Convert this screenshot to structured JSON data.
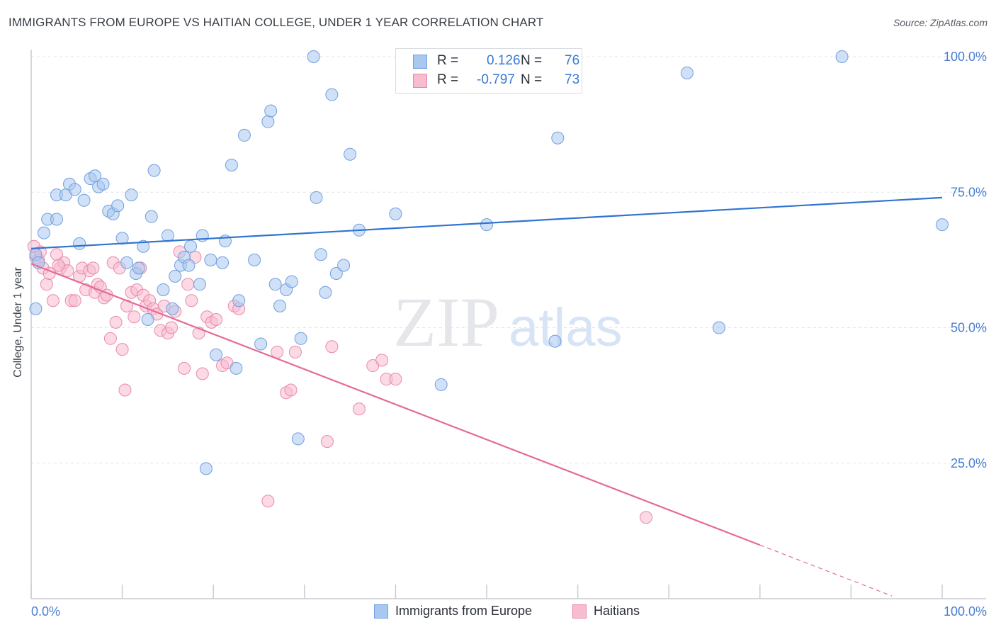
{
  "header": {
    "title": "IMMIGRANTS FROM EUROPE VS HAITIAN COLLEGE, UNDER 1 YEAR CORRELATION CHART",
    "source": "Source: ZipAtlas.com"
  },
  "watermark": {
    "zip": "ZIP",
    "atlas": "atlas"
  },
  "legend": {
    "rows": [
      {
        "r_label": "R =",
        "r_value": "0.126",
        "n_label": "N =",
        "n_value": "76",
        "color": "#a9c8f0",
        "border": "#6f9fe0"
      },
      {
        "r_label": "R =",
        "r_value": "-0.797",
        "n_label": "N =",
        "n_value": "73",
        "color": "#f7bccf",
        "border": "#e98aa9"
      }
    ]
  },
  "bottom_legend": [
    {
      "label": "Immigrants from Europe",
      "color": "#a9c8f0",
      "border": "#6f9fe0"
    },
    {
      "label": "Haitians",
      "color": "#f7bccf",
      "border": "#e98aa9"
    }
  ],
  "chart_data": {
    "type": "scatter",
    "title": "IMMIGRANTS FROM EUROPE VS HAITIAN COLLEGE, UNDER 1 YEAR CORRELATION CHART",
    "xlabel": "",
    "ylabel": "College, Under 1 year",
    "xlim": [
      0,
      100
    ],
    "ylim": [
      0,
      103
    ],
    "x_tick_labels": [
      "0.0%",
      "100.0%"
    ],
    "y_tick_labels": [
      "25.0%",
      "50.0%",
      "75.0%",
      "100.0%"
    ],
    "y_ticks": [
      25,
      50,
      75,
      100
    ],
    "grid": true,
    "colors": {
      "blue_point": "#a9c8f0",
      "blue_line": "#2f74d0",
      "pink_point": "#f7bccf",
      "pink_line": "#e46c96",
      "axis_text": "#4a7fd4"
    },
    "series": [
      {
        "name": "Immigrants from Europe",
        "trend": {
          "x": [
            0,
            100
          ],
          "y": [
            64.6,
            74.0
          ]
        },
        "points": [
          [
            0.5,
            63.5
          ],
          [
            0.5,
            53.5
          ],
          [
            1.4,
            67.5
          ],
          [
            1.8,
            70.0
          ],
          [
            2.8,
            70.0
          ],
          [
            2.8,
            74.5
          ],
          [
            3.8,
            74.5
          ],
          [
            4.2,
            76.5
          ],
          [
            4.8,
            75.5
          ],
          [
            5.3,
            65.5
          ],
          [
            5.8,
            73.5
          ],
          [
            6.5,
            77.5
          ],
          [
            7.0,
            78.0
          ],
          [
            7.4,
            76.0
          ],
          [
            7.9,
            76.5
          ],
          [
            8.5,
            71.5
          ],
          [
            9.0,
            71.0
          ],
          [
            9.5,
            72.5
          ],
          [
            10.0,
            66.5
          ],
          [
            10.5,
            62.0
          ],
          [
            11.0,
            74.5
          ],
          [
            11.5,
            60.0
          ],
          [
            11.8,
            61.0
          ],
          [
            12.3,
            65.0
          ],
          [
            12.8,
            51.5
          ],
          [
            13.2,
            70.5
          ],
          [
            13.5,
            79.0
          ],
          [
            14.5,
            57.0
          ],
          [
            15.0,
            67.0
          ],
          [
            15.5,
            53.5
          ],
          [
            15.8,
            59.5
          ],
          [
            16.4,
            61.5
          ],
          [
            16.8,
            63.0
          ],
          [
            17.5,
            65.0
          ],
          [
            17.3,
            61.5
          ],
          [
            18.5,
            58.0
          ],
          [
            18.8,
            67.0
          ],
          [
            19.2,
            24.0
          ],
          [
            19.7,
            62.5
          ],
          [
            20.3,
            45.0
          ],
          [
            21.0,
            62.0
          ],
          [
            21.3,
            66.0
          ],
          [
            22.0,
            80.0
          ],
          [
            22.5,
            42.5
          ],
          [
            22.8,
            55.0
          ],
          [
            23.4,
            85.5
          ],
          [
            24.5,
            62.5
          ],
          [
            25.2,
            47.0
          ],
          [
            26.0,
            88.0
          ],
          [
            26.3,
            90.0
          ],
          [
            26.8,
            58.0
          ],
          [
            27.3,
            54.0
          ],
          [
            28.0,
            57.0
          ],
          [
            28.6,
            58.5
          ],
          [
            29.3,
            29.5
          ],
          [
            29.6,
            48.0
          ],
          [
            31.0,
            100.0
          ],
          [
            31.3,
            74.0
          ],
          [
            31.8,
            63.5
          ],
          [
            32.3,
            56.5
          ],
          [
            33.0,
            93.0
          ],
          [
            33.5,
            60.0
          ],
          [
            34.3,
            61.5
          ],
          [
            35.0,
            82.0
          ],
          [
            36.0,
            68.0
          ],
          [
            40.0,
            71.0
          ],
          [
            45.0,
            39.5
          ],
          [
            47.5,
            100.0
          ],
          [
            50.0,
            69.0
          ],
          [
            57.5,
            47.5
          ],
          [
            57.8,
            85.0
          ],
          [
            72.0,
            97.0
          ],
          [
            75.5,
            50.0
          ],
          [
            89.0,
            100.0
          ],
          [
            100.0,
            69.0
          ],
          [
            0.8,
            62.0
          ]
        ]
      },
      {
        "name": "Haitians",
        "trend": {
          "x": [
            0,
            80
          ],
          "y": [
            61.8,
            9.9
          ]
        },
        "trend_dashed": {
          "x": [
            80,
            94.5
          ],
          "y": [
            9.9,
            0.5
          ]
        },
        "points": [
          [
            0.5,
            63.0
          ],
          [
            0.8,
            62.5
          ],
          [
            1.0,
            64.0
          ],
          [
            1.3,
            61.0
          ],
          [
            1.7,
            58.0
          ],
          [
            2.0,
            60.0
          ],
          [
            2.4,
            55.0
          ],
          [
            2.8,
            63.5
          ],
          [
            3.2,
            61.0
          ],
          [
            3.6,
            62.0
          ],
          [
            4.0,
            60.5
          ],
          [
            4.4,
            55.0
          ],
          [
            4.8,
            55.0
          ],
          [
            5.3,
            59.5
          ],
          [
            5.6,
            61.0
          ],
          [
            6.0,
            57.0
          ],
          [
            6.4,
            60.5
          ],
          [
            6.8,
            61.0
          ],
          [
            7.0,
            56.5
          ],
          [
            7.3,
            58.0
          ],
          [
            7.6,
            57.5
          ],
          [
            8.0,
            55.5
          ],
          [
            8.3,
            56.0
          ],
          [
            8.7,
            48.0
          ],
          [
            9.0,
            62.0
          ],
          [
            9.3,
            51.0
          ],
          [
            9.7,
            61.0
          ],
          [
            10.0,
            46.0
          ],
          [
            10.3,
            38.5
          ],
          [
            10.5,
            54.0
          ],
          [
            11.0,
            56.5
          ],
          [
            11.3,
            52.0
          ],
          [
            11.6,
            57.0
          ],
          [
            12.0,
            61.0
          ],
          [
            12.3,
            56.0
          ],
          [
            12.6,
            54.0
          ],
          [
            13.0,
            55.0
          ],
          [
            13.4,
            53.5
          ],
          [
            13.8,
            52.5
          ],
          [
            14.2,
            49.5
          ],
          [
            14.6,
            54.0
          ],
          [
            15.0,
            49.0
          ],
          [
            15.4,
            50.0
          ],
          [
            15.8,
            53.0
          ],
          [
            16.3,
            64.0
          ],
          [
            16.8,
            42.5
          ],
          [
            17.2,
            58.0
          ],
          [
            17.6,
            55.0
          ],
          [
            18.0,
            63.0
          ],
          [
            18.4,
            49.0
          ],
          [
            18.8,
            41.5
          ],
          [
            19.3,
            52.0
          ],
          [
            19.8,
            51.0
          ],
          [
            20.3,
            51.5
          ],
          [
            21.0,
            43.0
          ],
          [
            21.5,
            43.5
          ],
          [
            22.3,
            54.0
          ],
          [
            22.8,
            53.5
          ],
          [
            26.0,
            18.0
          ],
          [
            27.0,
            45.5
          ],
          [
            28.0,
            38.0
          ],
          [
            28.5,
            38.5
          ],
          [
            29.0,
            45.5
          ],
          [
            32.5,
            29.0
          ],
          [
            33.0,
            46.5
          ],
          [
            36.0,
            35.0
          ],
          [
            37.5,
            43.0
          ],
          [
            38.5,
            44.0
          ],
          [
            39.0,
            40.5
          ],
          [
            40.0,
            40.5
          ],
          [
            67.5,
            15.0
          ],
          [
            0.3,
            65.0
          ],
          [
            3.0,
            61.5
          ]
        ]
      }
    ]
  }
}
